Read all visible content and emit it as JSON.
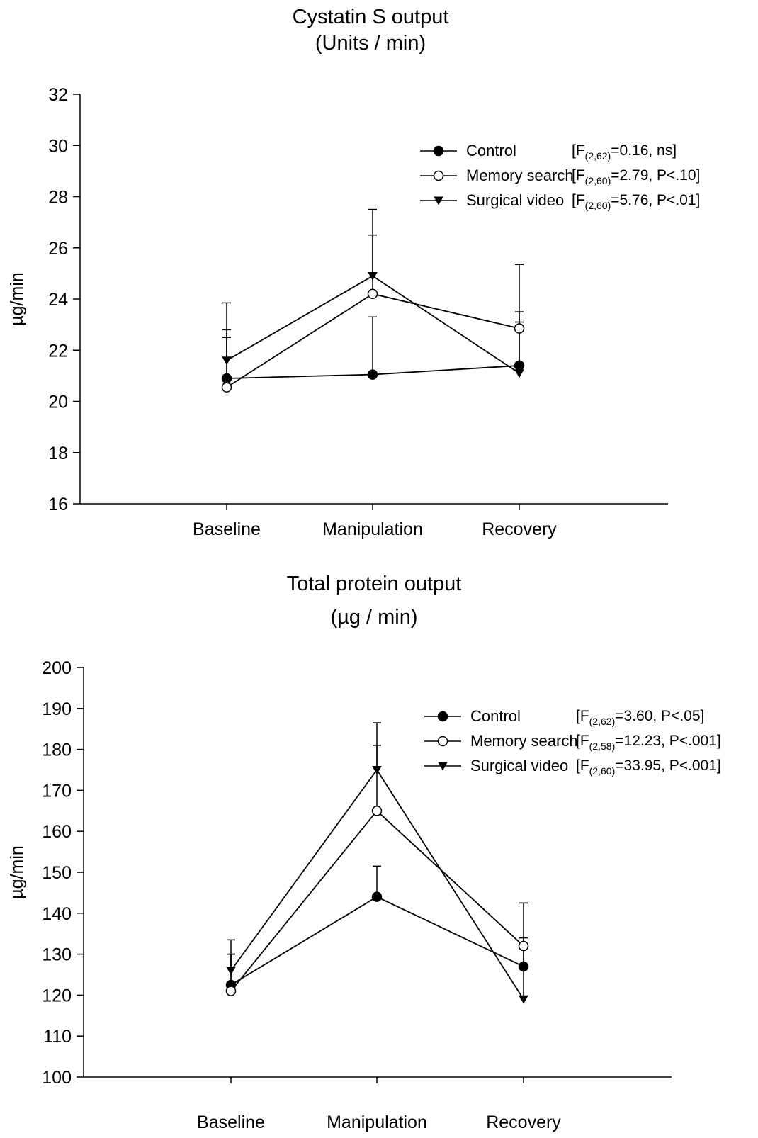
{
  "chart_data": [
    {
      "type": "line",
      "title": "Cystatin S output",
      "subtitle": "(Units / min)",
      "xlabel": "",
      "ylabel": "µg/min",
      "categories": [
        "Baseline",
        "Manipulation",
        "Recovery"
      ],
      "ylim": [
        16,
        32
      ],
      "yticks": [
        16,
        18,
        20,
        22,
        24,
        26,
        28,
        30,
        32
      ],
      "grid": false,
      "legend_position": "top-right",
      "series": [
        {
          "name": "Control",
          "marker": "filled-circle",
          "values": [
            20.9,
            21.05,
            21.4
          ],
          "error_upper": [
            22.8,
            23.3,
            23.5
          ],
          "stat": "[F(2,62)=0.16, ns]"
        },
        {
          "name": "Memory search",
          "marker": "open-circle",
          "values": [
            20.55,
            24.2,
            22.85
          ],
          "error_upper": [
            22.5,
            26.5,
            23.1
          ],
          "stat": "[F(2,60)=2.79, P<.10]"
        },
        {
          "name": "Surgical video",
          "marker": "filled-triangle-down",
          "values": [
            21.6,
            24.9,
            21.1
          ],
          "error_upper": [
            23.85,
            27.5,
            25.35
          ],
          "stat": "[F(2,60)=5.76, P<.01]"
        }
      ]
    },
    {
      "type": "line",
      "title": "Total protein output",
      "subtitle": "(µg / min)",
      "xlabel": "",
      "ylabel": "µg/min",
      "categories": [
        "Baseline",
        "Manipulation",
        "Recovery"
      ],
      "ylim": [
        100,
        200
      ],
      "yticks": [
        100,
        110,
        120,
        130,
        140,
        150,
        160,
        170,
        180,
        190,
        200
      ],
      "grid": false,
      "legend_position": "top-right",
      "series": [
        {
          "name": "Control",
          "marker": "filled-circle",
          "values": [
            122.5,
            144,
            127
          ],
          "error_upper": [
            130,
            151.5,
            134
          ],
          "stat": "[F(2,62)=3.60, P<.05]"
        },
        {
          "name": "Memory search",
          "marker": "open-circle",
          "values": [
            121,
            165,
            132
          ],
          "error_upper": [
            130,
            181,
            142.5
          ],
          "stat": "[F(2,58)=12.23, P<.001]"
        },
        {
          "name": "Surgical video",
          "marker": "filled-triangle-down",
          "values": [
            126,
            175,
            119
          ],
          "error_upper": [
            133.5,
            186.5,
            134
          ],
          "stat": "[F(2,60)=33.95, P<.001]"
        }
      ]
    }
  ]
}
